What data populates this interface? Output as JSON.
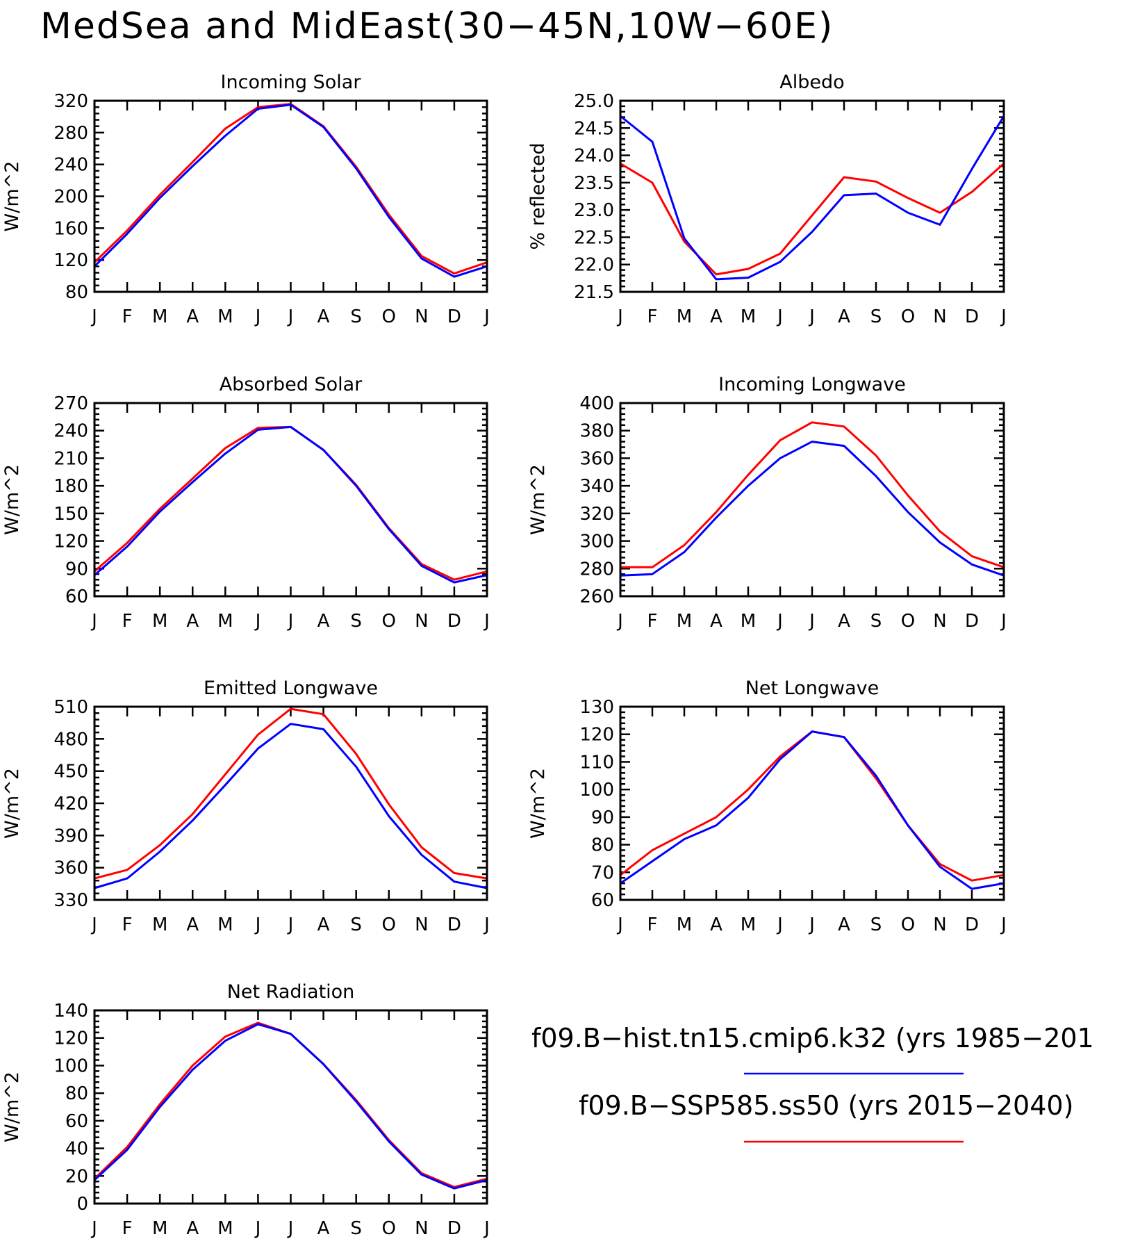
{
  "title": "MedSea and MidEast(30−45N,10W−60E)",
  "colors": {
    "hist": "#0000ff",
    "ssp": "#ff0000"
  },
  "legend": {
    "entries": [
      {
        "label": "f09.B−hist.tn15.cmip6.k32 (yrs 1985−201",
        "color": "#0000ff"
      },
      {
        "label": "f09.B−SSP585.ss50 (yrs 2015−2040)",
        "color": "#ff0000"
      }
    ]
  },
  "chart_data": [
    {
      "type": "line",
      "title": "Incoming Solar",
      "ylabel": "W/m^2",
      "categories": [
        "J",
        "F",
        "M",
        "A",
        "M",
        "J",
        "J",
        "A",
        "S",
        "O",
        "N",
        "D",
        "J"
      ],
      "ylim": [
        80,
        320
      ],
      "yticks": [
        80,
        120,
        160,
        200,
        240,
        280,
        320
      ],
      "ytick_labels": [
        "80",
        "120",
        "160",
        "200",
        "240",
        "280",
        "320"
      ],
      "series": [
        {
          "key": "hist",
          "values": [
            112,
            153,
            198,
            238,
            276,
            310,
            315,
            287,
            235,
            174,
            122,
            99,
            112
          ]
        },
        {
          "key": "ssp",
          "values": [
            117,
            157,
            202,
            243,
            285,
            312,
            316,
            288,
            237,
            177,
            125,
            103,
            117
          ]
        }
      ]
    },
    {
      "type": "line",
      "title": "Albedo",
      "ylabel": "% reflected",
      "categories": [
        "J",
        "F",
        "M",
        "A",
        "M",
        "J",
        "J",
        "A",
        "S",
        "O",
        "N",
        "D",
        "J"
      ],
      "ylim": [
        21.5,
        25.0
      ],
      "yticks": [
        21.5,
        22.0,
        22.5,
        23.0,
        23.5,
        24.0,
        24.5,
        25.0
      ],
      "ytick_labels": [
        "21.5",
        "22.0",
        "22.5",
        "23.0",
        "23.5",
        "24.0",
        "24.5",
        "25.0"
      ],
      "series": [
        {
          "key": "hist",
          "values": [
            24.72,
            24.25,
            22.48,
            21.73,
            21.76,
            22.05,
            22.6,
            23.27,
            23.3,
            22.95,
            22.73,
            23.75,
            24.72
          ]
        },
        {
          "key": "ssp",
          "values": [
            23.85,
            23.5,
            22.42,
            21.82,
            21.92,
            22.2,
            22.9,
            23.6,
            23.52,
            23.22,
            22.95,
            23.33,
            23.85
          ]
        }
      ]
    },
    {
      "type": "line",
      "title": "Absorbed Solar",
      "ylabel": "W/m^2",
      "categories": [
        "J",
        "F",
        "M",
        "A",
        "M",
        "J",
        "J",
        "A",
        "S",
        "O",
        "N",
        "D",
        "J"
      ],
      "ylim": [
        60,
        270
      ],
      "yticks": [
        60,
        90,
        120,
        150,
        180,
        210,
        240,
        270
      ],
      "ytick_labels": [
        "60",
        "90",
        "120",
        "150",
        "180",
        "210",
        "240",
        "270"
      ],
      "series": [
        {
          "key": "hist",
          "values": [
            83,
            114,
            152,
            184,
            215,
            241,
            244,
            219,
            180,
            133,
            93,
            75,
            83
          ]
        },
        {
          "key": "ssp",
          "values": [
            87,
            118,
            155,
            188,
            221,
            243,
            244,
            219,
            181,
            134,
            95,
            78,
            87
          ]
        }
      ]
    },
    {
      "type": "line",
      "title": "Incoming Longwave",
      "ylabel": "W/m^2",
      "categories": [
        "J",
        "F",
        "M",
        "A",
        "M",
        "J",
        "J",
        "A",
        "S",
        "O",
        "N",
        "D",
        "J"
      ],
      "ylim": [
        260,
        400
      ],
      "yticks": [
        260,
        280,
        300,
        320,
        340,
        360,
        380,
        400
      ],
      "ytick_labels": [
        "260",
        "280",
        "300",
        "320",
        "340",
        "360",
        "380",
        "400"
      ],
      "series": [
        {
          "key": "hist",
          "values": [
            275,
            276,
            292,
            317,
            340,
            360,
            372,
            369,
            347,
            321,
            299,
            283,
            275
          ]
        },
        {
          "key": "ssp",
          "values": [
            281,
            281,
            297,
            321,
            348,
            373,
            386,
            383,
            362,
            333,
            307,
            289,
            281
          ]
        }
      ]
    },
    {
      "type": "line",
      "title": "Emitted Longwave",
      "ylabel": "W/m^2",
      "categories": [
        "J",
        "F",
        "M",
        "A",
        "M",
        "J",
        "J",
        "A",
        "S",
        "O",
        "N",
        "D",
        "J"
      ],
      "ylim": [
        330,
        510
      ],
      "yticks": [
        330,
        360,
        390,
        420,
        450,
        480,
        510
      ],
      "ytick_labels": [
        "330",
        "360",
        "390",
        "420",
        "450",
        "480",
        "510"
      ],
      "series": [
        {
          "key": "hist",
          "values": [
            341,
            350,
            375,
            404,
            437,
            471,
            494,
            489,
            454,
            408,
            372,
            347,
            341
          ]
        },
        {
          "key": "ssp",
          "values": [
            350,
            358,
            381,
            410,
            447,
            484,
            508,
            503,
            466,
            419,
            379,
            355,
            350
          ]
        }
      ]
    },
    {
      "type": "line",
      "title": "Net Longwave",
      "ylabel": "W/m^2",
      "categories": [
        "J",
        "F",
        "M",
        "A",
        "M",
        "J",
        "J",
        "A",
        "S",
        "O",
        "N",
        "D",
        "J"
      ],
      "ylim": [
        60,
        130
      ],
      "yticks": [
        60,
        70,
        80,
        90,
        100,
        110,
        120,
        130
      ],
      "ytick_labels": [
        "60",
        "70",
        "80",
        "90",
        "100",
        "110",
        "120",
        "130"
      ],
      "series": [
        {
          "key": "hist",
          "values": [
            66,
            74,
            82,
            87,
            97,
            111,
            121,
            119,
            105,
            87,
            72,
            64,
            66
          ]
        },
        {
          "key": "ssp",
          "values": [
            69,
            78,
            84,
            90,
            100,
            112,
            121,
            119,
            104,
            87,
            73,
            67,
            69
          ]
        }
      ]
    },
    {
      "type": "line",
      "title": "Net Radiation",
      "ylabel": "W/m^2",
      "categories": [
        "J",
        "F",
        "M",
        "A",
        "M",
        "J",
        "J",
        "A",
        "S",
        "O",
        "N",
        "D",
        "J"
      ],
      "ylim": [
        0,
        140
      ],
      "yticks": [
        0,
        20,
        40,
        60,
        80,
        100,
        120,
        140
      ],
      "ytick_labels": [
        "0",
        "20",
        "40",
        "60",
        "80",
        "100",
        "120",
        "140"
      ],
      "series": [
        {
          "key": "hist",
          "values": [
            17,
            39,
            70,
            97,
            118,
            130,
            123,
            101,
            74,
            45,
            21,
            11,
            17
          ]
        },
        {
          "key": "ssp",
          "values": [
            18,
            41,
            72,
            100,
            121,
            131,
            123,
            101,
            75,
            46,
            22,
            12,
            18
          ]
        }
      ]
    }
  ]
}
